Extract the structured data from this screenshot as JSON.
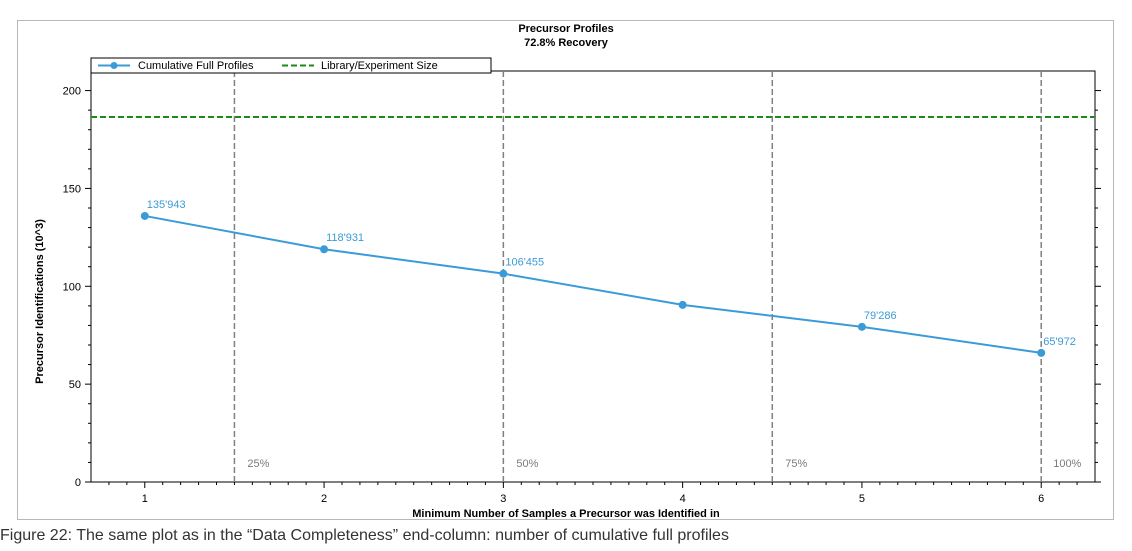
{
  "chart_data": {
    "type": "line",
    "title": "Precursor Profiles",
    "subtitle": "72.8% Recovery",
    "xlabel": "Minimum Number of Samples a Precursor was Identified in",
    "ylabel": "Precursor Identifications (10^3)",
    "x": [
      1,
      2,
      3,
      4,
      5,
      6
    ],
    "xlim": [
      0.7,
      6.3
    ],
    "ylim": [
      0,
      210
    ],
    "xticks": [
      "1",
      "2",
      "3",
      "4",
      "5",
      "6"
    ],
    "yticks": [
      "0",
      "50",
      "100",
      "150",
      "200"
    ],
    "ytick_values": [
      0,
      50,
      100,
      150,
      200
    ],
    "grid": false,
    "legend_position": "top-left",
    "series": [
      {
        "name": "Cumulative Full Profiles",
        "values": [
          135.943,
          118.931,
          106.455,
          90.5,
          79.286,
          65.972
        ],
        "data_labels": [
          "135'943",
          "118'931",
          "106'455",
          "",
          "79'286",
          "65'972"
        ],
        "color": "#3b9bd6"
      },
      {
        "name": "Library/Experiment Size",
        "constant": 186.5,
        "style": "dashed",
        "color": "#1a8a1a"
      }
    ],
    "reference_lines": [
      {
        "x": 1.5,
        "label": "25%"
      },
      {
        "x": 3.0,
        "label": "50%"
      },
      {
        "x": 4.5,
        "label": "75%"
      },
      {
        "x": 6.0,
        "label": "100%"
      }
    ],
    "reference_color": "#808080"
  },
  "caption": "Figure 22: The same plot as in the “Data Completeness” end-column: number of cumulative full profiles"
}
